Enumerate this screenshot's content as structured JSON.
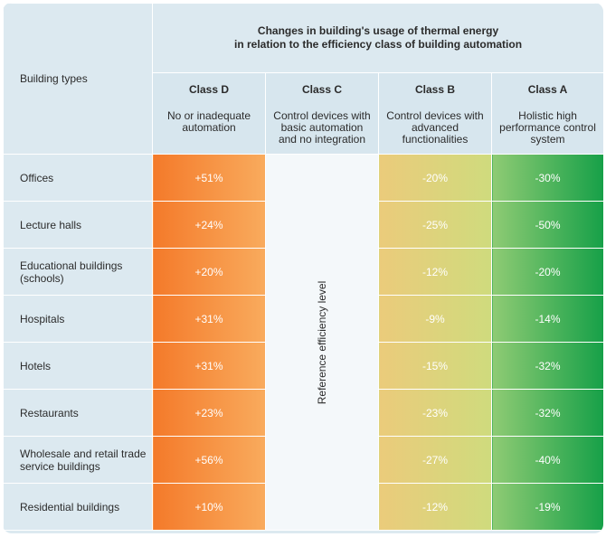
{
  "header": {
    "types_label": "Building types",
    "title_line1": "Changes in building's usage of thermal energy",
    "title_line2": "in relation to the efficiency class of building automation"
  },
  "classes": [
    {
      "name": "Class D",
      "desc": "No or inadequate automation"
    },
    {
      "name": "Class C",
      "desc": "Control devices with basic automation and no integration"
    },
    {
      "name": "Class B",
      "desc": "Control devices with advanced functionalities"
    },
    {
      "name": "Class A",
      "desc": "Holistic high performance control system"
    }
  ],
  "reference_label": "Reference efficiency level",
  "rows": [
    {
      "type": "Offices",
      "d": "+51%",
      "b": "-20%",
      "a": "-30%"
    },
    {
      "type": "Lecture halls",
      "d": "+24%",
      "b": "-25%",
      "a": "-50%"
    },
    {
      "type": "Educational buildings (schools)",
      "d": "+20%",
      "b": "-12%",
      "a": "-20%"
    },
    {
      "type": "Hospitals",
      "d": "+31%",
      "b": "-9%",
      "a": "-14%"
    },
    {
      "type": "Hotels",
      "d": "+31%",
      "b": "-15%",
      "a": "-32%"
    },
    {
      "type": "Restaurants",
      "d": "+23%",
      "b": "-23%",
      "a": "-32%"
    },
    {
      "type": "Wholesale and retail trade service buildings",
      "d": "+56%",
      "b": "-27%",
      "a": "-40%"
    },
    {
      "type": "Residential buildings",
      "d": "+10%",
      "b": "-12%",
      "a": "-19%"
    }
  ],
  "colors": {
    "class_d": [
      "#f47a2a",
      "#f9ab5d"
    ],
    "class_b": [
      "#ebcb7b",
      "#cfdb7d"
    ],
    "class_a": [
      "#8fcb74",
      "#16a048"
    ],
    "panel": "#dce9f0"
  }
}
